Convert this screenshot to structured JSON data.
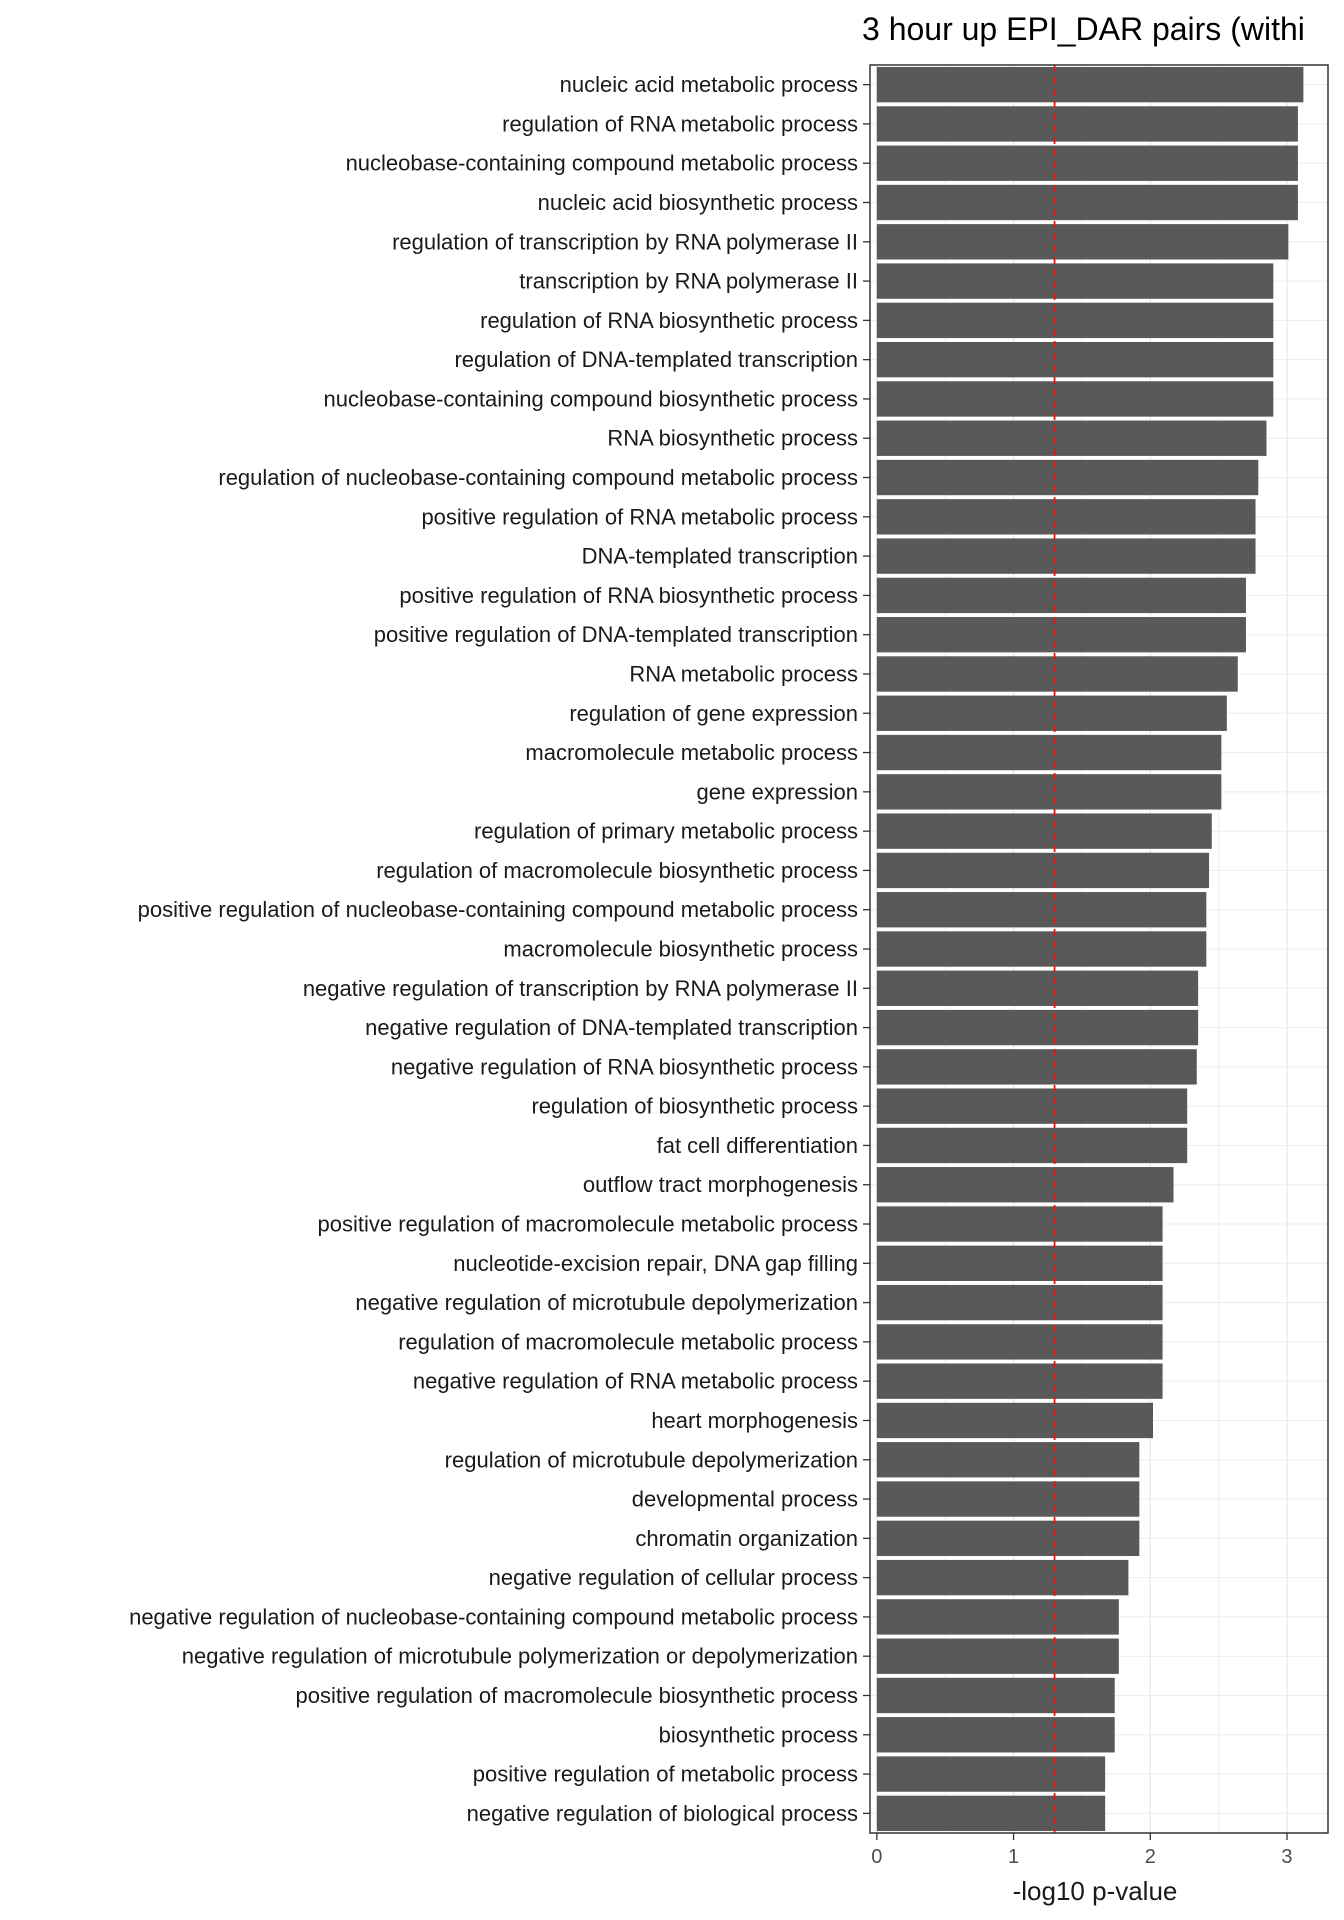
{
  "chart_data": {
    "type": "bar",
    "orientation": "horizontal",
    "title": "3 hour up EPI_DAR pairs (withi",
    "xlabel": "-log10 p-value",
    "ylabel": "",
    "xlim": [
      -0.05,
      3.3
    ],
    "xticks": [
      0,
      1,
      2,
      3
    ],
    "grid": true,
    "bar_color": "#595959",
    "threshold_line": {
      "value": 1.3,
      "color": "#cc1f1f",
      "style": "dashed"
    },
    "categories": [
      "nucleic acid metabolic process",
      "regulation of RNA metabolic process",
      "nucleobase-containing compound metabolic process",
      "nucleic acid biosynthetic process",
      "regulation of transcription by RNA polymerase II",
      "transcription by RNA polymerase II",
      "regulation of RNA biosynthetic process",
      "regulation of DNA-templated transcription",
      "nucleobase-containing compound biosynthetic process",
      "RNA biosynthetic process",
      "regulation of nucleobase-containing compound metabolic process",
      "positive regulation of RNA metabolic process",
      "DNA-templated transcription",
      "positive regulation of RNA biosynthetic process",
      "positive regulation of DNA-templated transcription",
      "RNA metabolic process",
      "regulation of gene expression",
      "macromolecule metabolic process",
      "gene expression",
      "regulation of primary metabolic process",
      "regulation of macromolecule biosynthetic process",
      "positive regulation of nucleobase-containing compound metabolic process",
      "macromolecule biosynthetic process",
      "negative regulation of transcription by RNA polymerase II",
      "negative regulation of DNA-templated transcription",
      "negative regulation of RNA biosynthetic process",
      "regulation of biosynthetic process",
      "fat cell differentiation",
      "outflow tract morphogenesis",
      "positive regulation of macromolecule metabolic process",
      "nucleotide-excision repair, DNA gap filling",
      "negative regulation of microtubule depolymerization",
      "regulation of macromolecule metabolic process",
      "negative regulation of RNA metabolic process",
      "heart morphogenesis",
      "regulation of microtubule depolymerization",
      "developmental process",
      "chromatin organization",
      "negative regulation of cellular process",
      "negative regulation of nucleobase-containing compound metabolic process",
      "negative regulation of microtubule polymerization or depolymerization",
      "positive regulation of macromolecule biosynthetic process",
      "biosynthetic process",
      "positive regulation of metabolic process",
      "negative regulation of biological process"
    ],
    "values": [
      3.12,
      3.08,
      3.08,
      3.08,
      3.01,
      2.9,
      2.9,
      2.9,
      2.9,
      2.85,
      2.79,
      2.77,
      2.77,
      2.7,
      2.7,
      2.64,
      2.56,
      2.52,
      2.52,
      2.45,
      2.43,
      2.41,
      2.41,
      2.35,
      2.35,
      2.34,
      2.27,
      2.27,
      2.17,
      2.09,
      2.09,
      2.09,
      2.09,
      2.09,
      2.02,
      1.92,
      1.92,
      1.92,
      1.84,
      1.77,
      1.77,
      1.74,
      1.74,
      1.67,
      1.67
    ]
  }
}
